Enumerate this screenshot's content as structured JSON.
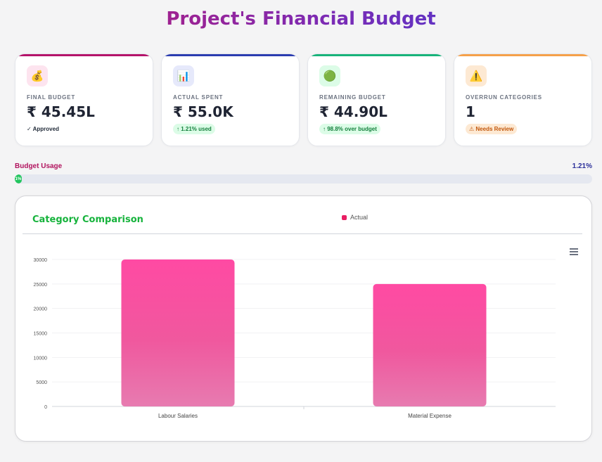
{
  "page": {
    "title": "Project's Financial Budget"
  },
  "cards": [
    {
      "name": "final-budget",
      "icon": "money-bag-icon",
      "icon_glyph": "💰",
      "icon_bg": "#fde4ef",
      "accent": "#b5136a",
      "label": "FINAL BUDGET",
      "value": "₹ 45.45L",
      "badge": "✓ Approved",
      "badge_color": "#1f2937",
      "badge_bg": "transparent"
    },
    {
      "name": "actual-spent",
      "icon": "bar-chart-icon",
      "icon_glyph": "📊",
      "icon_bg": "#e6e9fb",
      "accent": "#2b3db0",
      "label": "ACTUAL SPENT",
      "value": "₹ 55.0K",
      "badge": "↑ 1.21% used",
      "badge_color": "#15803d",
      "badge_bg": "#dcfce7"
    },
    {
      "name": "remaining-budget",
      "icon": "green-circle-icon",
      "icon_glyph": "🟢",
      "icon_bg": "#dcfce7",
      "accent": "#18b37a",
      "label": "REMAINING BUDGET",
      "value": "₹ 44.90L",
      "badge": "↑ 98.8% over budget",
      "badge_color": "#15803d",
      "badge_bg": "#dcfce7"
    },
    {
      "name": "overrun-categories",
      "icon": "warning-icon",
      "icon_glyph": "⚠️",
      "icon_bg": "#fde9d3",
      "accent": "#f5a04a",
      "label": "OVERRUN CATEGORIES",
      "value": "1",
      "badge": "⚠ Needs Review",
      "badge_color": "#c2570c",
      "badge_bg": "#fde9d3"
    }
  ],
  "usage": {
    "label": "Budget Usage",
    "percent_text": "1.21%",
    "percent": 1.21,
    "fill_text": "1%"
  },
  "chart": {
    "title": "Category Comparison",
    "menu_icon": "hamburger-menu-icon"
  },
  "chart_data": {
    "type": "bar",
    "title": "Category Comparison",
    "categories": [
      "Labour Salaries",
      "Material Expense"
    ],
    "series": [
      {
        "name": "Actual",
        "values": [
          30000,
          25000
        ],
        "color": "#e91e63"
      }
    ],
    "ylim": [
      0,
      30000
    ],
    "yticks": [
      0,
      5000,
      10000,
      15000,
      20000,
      25000,
      30000
    ],
    "grid": true,
    "legend": "top-center"
  }
}
